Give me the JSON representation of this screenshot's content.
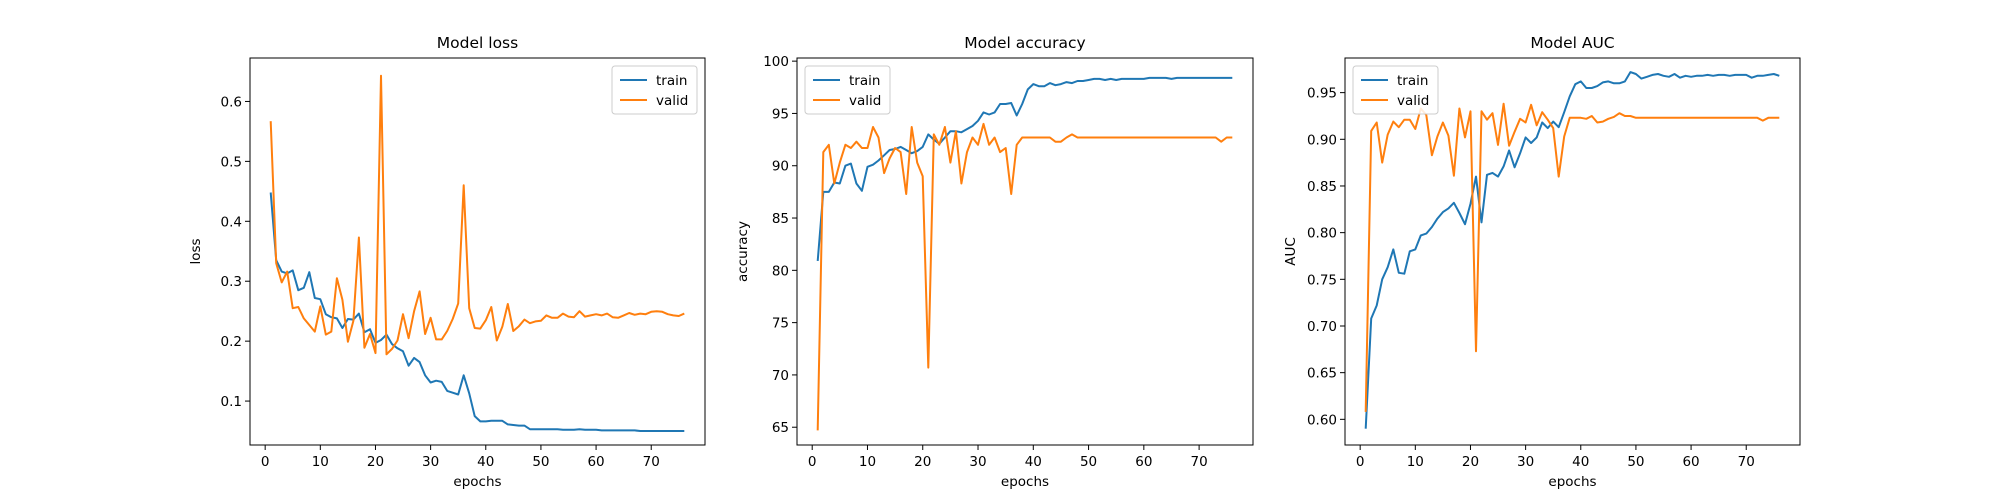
{
  "chart_data": [
    {
      "type": "line",
      "title": "Model loss",
      "xlabel": "epochs",
      "ylabel": "loss",
      "xlim": [
        -2.75,
        79.75
      ],
      "ylim": [
        0.0267,
        0.6725
      ],
      "xticks": [
        0,
        10,
        20,
        30,
        40,
        50,
        60,
        70
      ],
      "yticks": [
        0.1,
        0.2,
        0.3,
        0.4,
        0.5,
        0.6
      ],
      "ytick_labels": [
        "0.1",
        "0.2",
        "0.3",
        "0.4",
        "0.5",
        "0.6"
      ],
      "legend": "top-right",
      "series": [
        {
          "name": "train",
          "color": "#1f77b4",
          "values": [
            0.448,
            0.335,
            0.316,
            0.313,
            0.318,
            0.285,
            0.289,
            0.315,
            0.272,
            0.27,
            0.245,
            0.24,
            0.238,
            0.222,
            0.237,
            0.236,
            0.246,
            0.215,
            0.22,
            0.197,
            0.202,
            0.211,
            0.195,
            0.188,
            0.183,
            0.159,
            0.172,
            0.165,
            0.143,
            0.131,
            0.134,
            0.132,
            0.117,
            0.114,
            0.111,
            0.143,
            0.113,
            0.075,
            0.066,
            0.066,
            0.067,
            0.067,
            0.067,
            0.061,
            0.06,
            0.059,
            0.059,
            0.053,
            0.053,
            0.053,
            0.053,
            0.053,
            0.053,
            0.052,
            0.052,
            0.052,
            0.053,
            0.052,
            0.052,
            0.052,
            0.051,
            0.051,
            0.051,
            0.051,
            0.051,
            0.051,
            0.051,
            0.05,
            0.05,
            0.05,
            0.05,
            0.05,
            0.05,
            0.05,
            0.05,
            0.05
          ]
        },
        {
          "name": "valid",
          "color": "#ff7f0e",
          "values": [
            0.567,
            0.33,
            0.298,
            0.316,
            0.255,
            0.257,
            0.238,
            0.227,
            0.216,
            0.258,
            0.211,
            0.216,
            0.305,
            0.269,
            0.199,
            0.234,
            0.373,
            0.189,
            0.212,
            0.18,
            0.643,
            0.178,
            0.187,
            0.201,
            0.245,
            0.205,
            0.25,
            0.283,
            0.212,
            0.239,
            0.203,
            0.203,
            0.217,
            0.237,
            0.263,
            0.46,
            0.255,
            0.222,
            0.221,
            0.235,
            0.257,
            0.201,
            0.224,
            0.262,
            0.217,
            0.225,
            0.236,
            0.23,
            0.233,
            0.234,
            0.243,
            0.239,
            0.239,
            0.246,
            0.241,
            0.24,
            0.25,
            0.241,
            0.243,
            0.245,
            0.243,
            0.246,
            0.24,
            0.239,
            0.243,
            0.247,
            0.244,
            0.246,
            0.245,
            0.249,
            0.25,
            0.249,
            0.245,
            0.243,
            0.242,
            0.246
          ]
        }
      ]
    },
    {
      "type": "line",
      "title": "Model accuracy",
      "xlabel": "epochs",
      "ylabel": "accuracy",
      "xlim": [
        -2.75,
        79.75
      ],
      "ylim": [
        63.3,
        100.3
      ],
      "xticks": [
        0,
        10,
        20,
        30,
        40,
        50,
        60,
        70
      ],
      "yticks": [
        65,
        70,
        75,
        80,
        85,
        90,
        95,
        100
      ],
      "ytick_labels": [
        "65",
        "70",
        "75",
        "80",
        "85",
        "90",
        "95",
        "100"
      ],
      "legend": "top-left",
      "series": [
        {
          "name": "train",
          "color": "#1f77b4",
          "values": [
            80.9,
            87.5,
            87.5,
            88.4,
            88.3,
            90.0,
            90.2,
            88.3,
            87.6,
            89.9,
            90.1,
            90.5,
            91.0,
            91.5,
            91.6,
            91.8,
            91.5,
            91.2,
            91.4,
            91.8,
            93.0,
            92.5,
            92.1,
            92.7,
            93.3,
            93.3,
            93.2,
            93.5,
            93.8,
            94.3,
            95.1,
            94.9,
            95.1,
            95.9,
            95.9,
            96.0,
            94.8,
            95.9,
            97.3,
            97.8,
            97.6,
            97.6,
            97.9,
            97.7,
            97.8,
            98.0,
            97.9,
            98.1,
            98.1,
            98.2,
            98.3,
            98.3,
            98.2,
            98.3,
            98.2,
            98.3,
            98.3,
            98.3,
            98.3,
            98.3,
            98.4,
            98.4,
            98.4,
            98.4,
            98.3,
            98.4,
            98.4,
            98.4,
            98.4,
            98.4,
            98.4,
            98.4,
            98.4,
            98.4,
            98.4,
            98.4
          ]
        },
        {
          "name": "valid",
          "color": "#ff7f0e",
          "values": [
            64.7,
            91.3,
            92.0,
            88.3,
            90.3,
            92.0,
            91.7,
            92.3,
            91.7,
            91.7,
            93.7,
            92.7,
            89.3,
            90.7,
            91.7,
            91.3,
            87.3,
            93.7,
            90.3,
            89.0,
            70.7,
            93.0,
            92.0,
            93.7,
            90.3,
            93.3,
            88.3,
            91.3,
            92.7,
            92.0,
            94.0,
            92.0,
            92.7,
            91.3,
            91.7,
            87.3,
            92.0,
            92.7,
            92.7,
            92.7,
            92.7,
            92.7,
            92.7,
            92.3,
            92.3,
            92.7,
            93.0,
            92.7,
            92.7,
            92.7,
            92.7,
            92.7,
            92.7,
            92.7,
            92.7,
            92.7,
            92.7,
            92.7,
            92.7,
            92.7,
            92.7,
            92.7,
            92.7,
            92.7,
            92.7,
            92.7,
            92.7,
            92.7,
            92.7,
            92.7,
            92.7,
            92.7,
            92.7,
            92.3,
            92.7,
            92.7
          ]
        }
      ]
    },
    {
      "type": "line",
      "title": "Model AUC",
      "xlabel": "epochs",
      "ylabel": "AUC",
      "xlim": [
        -2.75,
        79.75
      ],
      "ylim": [
        0.5725,
        0.9871
      ],
      "xticks": [
        0,
        10,
        20,
        30,
        40,
        50,
        60,
        70
      ],
      "yticks": [
        0.6,
        0.65,
        0.7,
        0.75,
        0.8,
        0.85,
        0.9,
        0.95
      ],
      "ytick_labels": [
        "0.60",
        "0.65",
        "0.70",
        "0.75",
        "0.80",
        "0.85",
        "0.90",
        "0.95"
      ],
      "legend": "top-left",
      "series": [
        {
          "name": "train",
          "color": "#1f77b4",
          "values": [
            0.59,
            0.708,
            0.722,
            0.75,
            0.763,
            0.782,
            0.757,
            0.756,
            0.78,
            0.782,
            0.797,
            0.799,
            0.806,
            0.815,
            0.822,
            0.826,
            0.832,
            0.821,
            0.809,
            0.831,
            0.86,
            0.811,
            0.862,
            0.864,
            0.86,
            0.871,
            0.888,
            0.87,
            0.885,
            0.902,
            0.896,
            0.902,
            0.918,
            0.912,
            0.919,
            0.913,
            0.929,
            0.946,
            0.959,
            0.962,
            0.955,
            0.955,
            0.957,
            0.961,
            0.962,
            0.96,
            0.96,
            0.962,
            0.972,
            0.97,
            0.965,
            0.967,
            0.969,
            0.97,
            0.968,
            0.967,
            0.97,
            0.966,
            0.968,
            0.967,
            0.968,
            0.968,
            0.969,
            0.968,
            0.969,
            0.969,
            0.968,
            0.969,
            0.969,
            0.969,
            0.966,
            0.968,
            0.968,
            0.969,
            0.97,
            0.968
          ]
        },
        {
          "name": "valid",
          "color": "#ff7f0e",
          "values": [
            0.608,
            0.909,
            0.918,
            0.875,
            0.905,
            0.919,
            0.913,
            0.921,
            0.921,
            0.911,
            0.933,
            0.926,
            0.883,
            0.903,
            0.918,
            0.904,
            0.861,
            0.933,
            0.902,
            0.93,
            0.673,
            0.93,
            0.921,
            0.928,
            0.894,
            0.938,
            0.893,
            0.908,
            0.922,
            0.918,
            0.937,
            0.915,
            0.929,
            0.921,
            0.912,
            0.86,
            0.903,
            0.923,
            0.923,
            0.923,
            0.922,
            0.925,
            0.918,
            0.919,
            0.922,
            0.924,
            0.928,
            0.925,
            0.925,
            0.923,
            0.923,
            0.923,
            0.923,
            0.923,
            0.923,
            0.923,
            0.923,
            0.923,
            0.923,
            0.923,
            0.923,
            0.923,
            0.923,
            0.923,
            0.923,
            0.923,
            0.923,
            0.923,
            0.923,
            0.923,
            0.923,
            0.923,
            0.92,
            0.923,
            0.923,
            0.923
          ]
        }
      ]
    }
  ]
}
